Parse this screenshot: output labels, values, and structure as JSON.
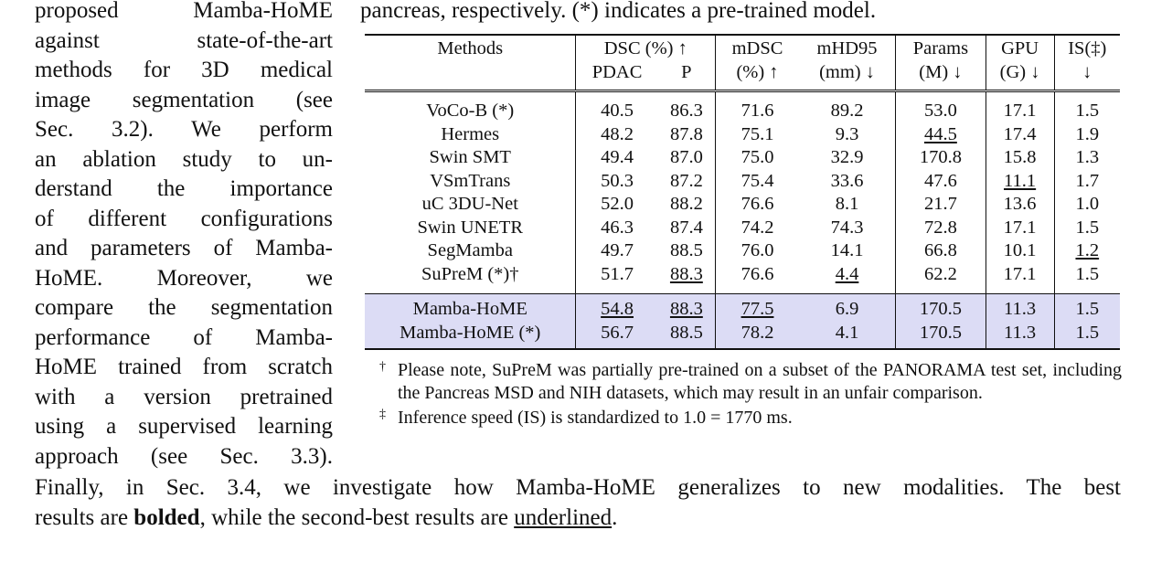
{
  "left_column": {
    "lines": [
      "proposed Mamba-HoME",
      "against state-of-the-art",
      "methods for 3D medical",
      "image segmentation (see",
      "Sec. 3.2). We perform",
      "an ablation study to un-",
      "derstand the importance",
      "of different configurations",
      "and parameters of Mamba-",
      "HoME. Moreover, we",
      "compare the segmentation",
      "performance of Mamba-",
      "HoME trained from scratch",
      "with a version pretrained",
      "using a supervised learning",
      "approach (see Sec. 3.3)."
    ]
  },
  "caption_tail": "pancreas, respectively. (*) indicates a pre-trained model.",
  "table": {
    "header_row1": [
      "Methods",
      "DSC (%) ↑",
      "mDSC",
      "mHD95",
      "Params",
      "GPU",
      "IS(‡)"
    ],
    "header_row2": [
      "PDAC",
      "P",
      "(%) ↑",
      "(mm) ↓",
      "(M) ↓",
      "(G) ↓",
      "↓"
    ],
    "baseline_rows": [
      {
        "method": "VoCo-B (*)",
        "pdac": "40.5",
        "p": "86.3",
        "mdsc": "71.6",
        "mhd95": "89.2",
        "params": "53.0",
        "gpu": "17.1",
        "is": "1.5"
      },
      {
        "method": "Hermes",
        "pdac": "48.2",
        "p": "87.8",
        "mdsc": "75.1",
        "mhd95": "9.3",
        "params": "44.5",
        "gpu": "17.4",
        "is": "1.9"
      },
      {
        "method": "Swin SMT",
        "pdac": "49.4",
        "p": "87.0",
        "mdsc": "75.0",
        "mhd95": "32.9",
        "params": "170.8",
        "gpu": "15.8",
        "is": "1.3"
      },
      {
        "method": "VSmTrans",
        "pdac": "50.3",
        "p": "87.2",
        "mdsc": "75.4",
        "mhd95": "33.6",
        "params": "47.6",
        "gpu": "11.1",
        "is": "1.7"
      },
      {
        "method": "uC 3DU-Net",
        "pdac": "52.0",
        "p": "88.2",
        "mdsc": "76.6",
        "mhd95": "8.1",
        "params": "21.7",
        "gpu": "13.6",
        "is": "1.0"
      },
      {
        "method": "Swin UNETR",
        "pdac": "46.3",
        "p": "87.4",
        "mdsc": "74.2",
        "mhd95": "74.3",
        "params": "72.8",
        "gpu": "17.1",
        "is": "1.5"
      },
      {
        "method": "SegMamba",
        "pdac": "49.7",
        "p": "88.5",
        "mdsc": "76.0",
        "mhd95": "14.1",
        "params": "66.8",
        "gpu": "10.1",
        "is": "1.2"
      },
      {
        "method": "SuPreM (*)†",
        "pdac": "51.7",
        "p": "88.3",
        "mdsc": "76.6",
        "mhd95": "4.4",
        "params": "62.2",
        "gpu": "17.1",
        "is": "1.5"
      }
    ],
    "ours_rows": [
      {
        "method": "Mamba-HoME",
        "pdac": "54.8",
        "p": "88.3",
        "mdsc": "77.5",
        "mhd95": "6.9",
        "params": "170.5",
        "gpu": "11.3",
        "is": "1.5"
      },
      {
        "method": "Mamba-HoME (*)",
        "pdac": "56.7",
        "p": "88.5",
        "mdsc": "78.2",
        "mhd95": "4.1",
        "params": "170.5",
        "gpu": "11.3",
        "is": "1.5"
      }
    ]
  },
  "footnotes": [
    {
      "mark": "†",
      "text": "Please note, SuPreM was partially pre-trained on a subset of the PANORAMA test set, including the Pancreas MSD and NIH datasets, which may result in an unfair comparison."
    },
    {
      "mark": "‡",
      "text": "Inference speed (IS) is standardized to 1.0 = 1770 ms."
    }
  ],
  "bottom_text": {
    "line1": "Finally, in Sec. 3.4, we investigate how Mamba-HoME generalizes to new modalities. The best",
    "line2_pre": "results are ",
    "line2_bold": "bolded",
    "line2_mid": ", while the second-best results are ",
    "line2_underlined": "underlined",
    "line2_end": "."
  },
  "colors": {
    "highlight_row_bg": "#dcdcf5",
    "text": "#111111"
  }
}
